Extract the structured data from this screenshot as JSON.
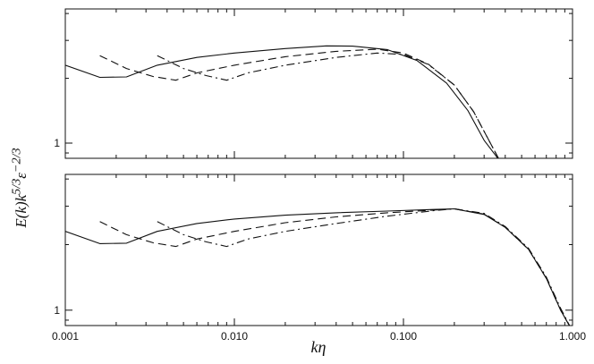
{
  "chart_data": {
    "type": "line",
    "xlabel": "kη",
    "ylabel": "E(k)k^5/3 ε^-2/3",
    "x_scale": "log",
    "y_scale": "log",
    "xlim": [
      0.001,
      1.0
    ],
    "xticks": [
      "0.001",
      "0.010",
      "0.100",
      "1.000"
    ],
    "yticks": [
      "1"
    ],
    "grid": false,
    "panels": [
      {
        "name": "top",
        "ylim": [
          0.85,
          4.2
        ],
        "series": [
          {
            "style": "solid",
            "x": [
              0.001,
              0.0016,
              0.0023,
              0.0035,
              0.006,
              0.01,
              0.02,
              0.035,
              0.05,
              0.08,
              0.12,
              0.18,
              0.24,
              0.3,
              0.35,
              0.38
            ],
            "y": [
              2.3,
              2.02,
              2.03,
              2.3,
              2.5,
              2.62,
              2.75,
              2.83,
              2.82,
              2.72,
              2.42,
              1.9,
              1.42,
              1.03,
              0.88,
              0.8
            ]
          },
          {
            "style": "dashed",
            "x": [
              0.0016,
              0.0023,
              0.0033,
              0.0045,
              0.006,
              0.01,
              0.02,
              0.04,
              0.07,
              0.1,
              0.14,
              0.2,
              0.26,
              0.32,
              0.38
            ],
            "y": [
              2.55,
              2.22,
              2.04,
              1.96,
              2.12,
              2.3,
              2.52,
              2.67,
              2.73,
              2.62,
              2.33,
              1.86,
              1.4,
              1.03,
              0.8
            ]
          },
          {
            "style": "dash-dot",
            "x": [
              0.0035,
              0.005,
              0.0068,
              0.009,
              0.012,
              0.02,
              0.04,
              0.07,
              0.1,
              0.14,
              0.2,
              0.26,
              0.32,
              0.38
            ],
            "y": [
              2.55,
              2.22,
              2.06,
              1.96,
              2.12,
              2.3,
              2.5,
              2.62,
              2.58,
              2.32,
              1.86,
              1.4,
              1.03,
              0.8
            ]
          }
        ]
      },
      {
        "name": "bottom",
        "ylim": [
          0.85,
          4.2
        ],
        "series": [
          {
            "style": "solid",
            "x": [
              0.001,
              0.0016,
              0.0023,
              0.0035,
              0.006,
              0.01,
              0.02,
              0.04,
              0.08,
              0.15,
              0.2,
              0.3,
              0.4,
              0.55,
              0.7,
              0.85,
              1.0
            ],
            "y": [
              2.3,
              2.02,
              2.03,
              2.3,
              2.5,
              2.62,
              2.73,
              2.8,
              2.85,
              2.9,
              2.92,
              2.75,
              2.4,
              1.9,
              1.4,
              1.0,
              0.8
            ]
          },
          {
            "style": "dashed",
            "x": [
              0.0016,
              0.0023,
              0.0033,
              0.0045,
              0.006,
              0.01,
              0.02,
              0.04,
              0.08,
              0.15,
              0.2,
              0.3,
              0.4,
              0.55,
              0.7,
              0.85,
              1.0
            ],
            "y": [
              2.55,
              2.22,
              2.04,
              1.96,
              2.12,
              2.3,
              2.52,
              2.68,
              2.8,
              2.88,
              2.92,
              2.76,
              2.4,
              1.9,
              1.4,
              1.0,
              0.8
            ]
          },
          {
            "style": "dash-dot",
            "x": [
              0.0035,
              0.005,
              0.0068,
              0.009,
              0.012,
              0.02,
              0.04,
              0.08,
              0.15,
              0.2,
              0.3,
              0.4,
              0.55,
              0.7,
              0.85,
              1.0
            ],
            "y": [
              2.55,
              2.22,
              2.06,
              1.96,
              2.12,
              2.3,
              2.5,
              2.7,
              2.86,
              2.92,
              2.78,
              2.42,
              1.92,
              1.42,
              1.02,
              0.8
            ]
          }
        ]
      }
    ]
  }
}
